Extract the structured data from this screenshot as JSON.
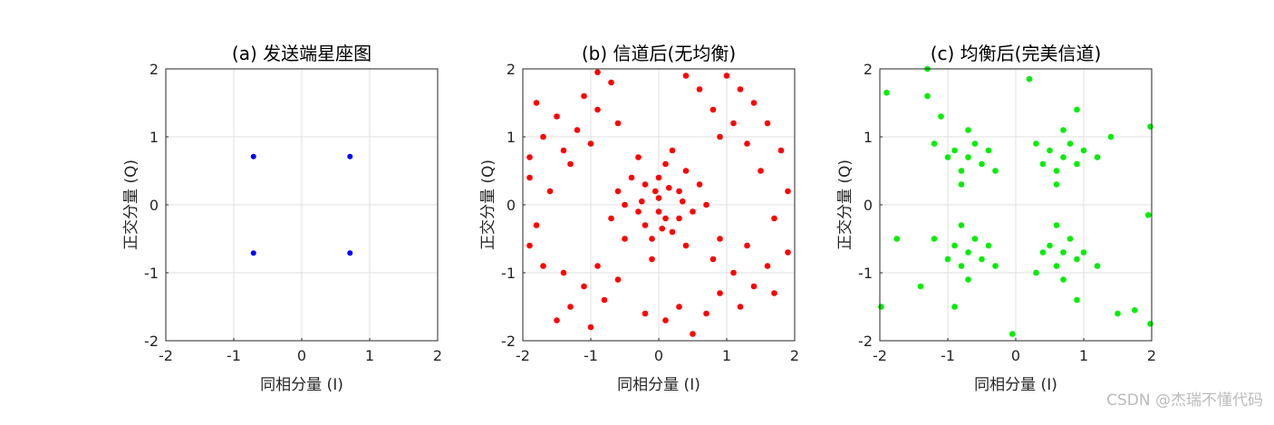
{
  "chart_data": [
    {
      "type": "scatter",
      "title": "(a) 发送端星座图",
      "x_label": "同相分量 (I)",
      "y_label": "正交分量 (Q)",
      "color": "#0000ff",
      "grid": true,
      "xlim": [
        -2,
        2
      ],
      "ylim": [
        -2,
        2
      ],
      "xticks": [
        -2,
        -1,
        0,
        1,
        2
      ],
      "yticks": [
        -2,
        -1,
        0,
        1,
        2
      ],
      "x": [
        -0.71,
        -0.71,
        0.71,
        0.71
      ],
      "values": [
        0.71,
        -0.71,
        0.71,
        -0.71
      ]
    },
    {
      "type": "scatter",
      "title": "(b) 信道后(无均衡)",
      "x_label": "同相分量 (I)",
      "y_label": "正交分量 (Q)",
      "color": "#ff0000",
      "grid": true,
      "xlim": [
        -2,
        2
      ],
      "ylim": [
        -2,
        2
      ],
      "xticks": [
        -2,
        -1,
        0,
        1,
        2
      ],
      "yticks": [
        -2,
        -1,
        0,
        1,
        2
      ],
      "x": [
        0.0,
        -0.2,
        0.3,
        0.1,
        -0.3,
        0.4,
        -0.4,
        0.2,
        -0.1,
        0.5,
        -0.5,
        0.1,
        -0.2,
        0.3,
        0.0,
        -0.6,
        0.6,
        0.2,
        -0.3,
        -0.1,
        0.4,
        -0.5,
        0.7,
        -0.7,
        0.0,
        0.15,
        -0.25,
        0.35,
        -0.05,
        0.05,
        -1.2,
        -1.5,
        -0.9,
        -1.4,
        -1.0,
        -1.7,
        -1.1,
        -0.7,
        -1.8,
        -1.3,
        -0.6,
        -1.9,
        -0.9,
        1.1,
        1.4,
        0.8,
        1.3,
        0.9,
        1.6,
        1.2,
        0.6,
        1.8,
        1.5,
        1.9,
        1.7,
        0.4,
        1.0,
        -1.1,
        -1.4,
        -0.8,
        -1.3,
        -0.9,
        -1.7,
        -1.5,
        -0.6,
        -1.9,
        -1.8,
        -1.6,
        -1.9,
        -1.0,
        1.1,
        1.4,
        0.8,
        1.3,
        0.9,
        1.6,
        1.2,
        0.7,
        1.7,
        0.9,
        0.3,
        0.1,
        -0.2,
        0.5,
        1.9
      ],
      "values": [
        0.1,
        0.3,
        0.2,
        -0.2,
        -0.1,
        0.5,
        0.4,
        -0.4,
        -0.5,
        -0.1,
        0.0,
        0.6,
        -0.3,
        -0.2,
        0.4,
        0.2,
        0.3,
        0.8,
        0.7,
        -0.8,
        -0.6,
        -0.5,
        0.0,
        -0.2,
        -0.1,
        0.25,
        0.05,
        0.05,
        0.2,
        -0.35,
        1.1,
        1.3,
        1.4,
        0.8,
        0.9,
        1.0,
        1.6,
        1.8,
        1.5,
        0.6,
        1.2,
        0.7,
        1.95,
        1.2,
        1.5,
        1.4,
        0.9,
        1.0,
        1.2,
        1.7,
        1.7,
        0.8,
        0.5,
        0.2,
        -0.2,
        1.9,
        1.9,
        -1.2,
        -1.0,
        -1.4,
        -1.5,
        -0.9,
        -0.9,
        -1.7,
        -1.1,
        -0.6,
        -0.3,
        0.2,
        0.4,
        -1.8,
        -1.0,
        -1.2,
        -0.8,
        -0.6,
        -1.3,
        -0.9,
        -1.5,
        -1.6,
        -1.3,
        -0.5,
        -1.5,
        -1.7,
        -1.6,
        -1.9,
        -0.7
      ]
    },
    {
      "type": "scatter",
      "title": "(c) 均衡后(完美信道)",
      "x_label": "同相分量 (I)",
      "y_label": "正交分量 (Q)",
      "color": "#00ee00",
      "grid": true,
      "xlim": [
        -2,
        2
      ],
      "ylim": [
        -2,
        2
      ],
      "xticks": [
        -2,
        -1,
        0,
        1,
        2
      ],
      "yticks": [
        -2,
        -1,
        0,
        1,
        2
      ],
      "x": [
        -0.7,
        -0.9,
        -0.5,
        -0.8,
        -0.6,
        -1.0,
        -0.4,
        -0.7,
        -1.2,
        -0.8,
        -0.3,
        -1.3,
        -1.1,
        0.7,
        0.5,
        0.9,
        0.6,
        0.8,
        1.0,
        0.4,
        0.7,
        1.2,
        0.6,
        0.3,
        1.4,
        0.9,
        -0.7,
        -0.9,
        -0.5,
        -0.8,
        -0.6,
        -1.0,
        -0.4,
        -0.7,
        -1.2,
        -0.8,
        -0.3,
        -1.4,
        -0.9,
        0.7,
        0.5,
        0.9,
        0.6,
        0.8,
        1.0,
        0.4,
        0.7,
        1.2,
        0.6,
        0.3,
        1.5,
        0.9,
        -1.9,
        -1.98,
        1.98,
        -1.3,
        1.98,
        -0.05,
        1.95,
        -1.75,
        1.75,
        0.2
      ],
      "values": [
        0.7,
        0.8,
        0.6,
        0.5,
        0.9,
        0.7,
        0.8,
        1.1,
        0.9,
        0.3,
        0.5,
        1.6,
        1.3,
        0.7,
        0.8,
        0.6,
        0.5,
        0.9,
        0.8,
        0.6,
        1.1,
        0.7,
        0.3,
        0.9,
        1.0,
        1.4,
        -0.7,
        -0.6,
        -0.8,
        -0.9,
        -0.5,
        -0.8,
        -0.6,
        -1.1,
        -0.5,
        -0.3,
        -0.9,
        -1.2,
        -1.5,
        -0.7,
        -0.6,
        -0.8,
        -0.9,
        -0.5,
        -0.7,
        -0.7,
        -1.1,
        -0.9,
        -0.3,
        -1.0,
        -1.6,
        -1.4,
        1.65,
        -1.5,
        1.15,
        2.0,
        -1.75,
        -1.9,
        -0.15,
        -0.5,
        -1.55,
        1.85
      ]
    }
  ],
  "watermark": "CSDN @杰瑞不懂代码"
}
